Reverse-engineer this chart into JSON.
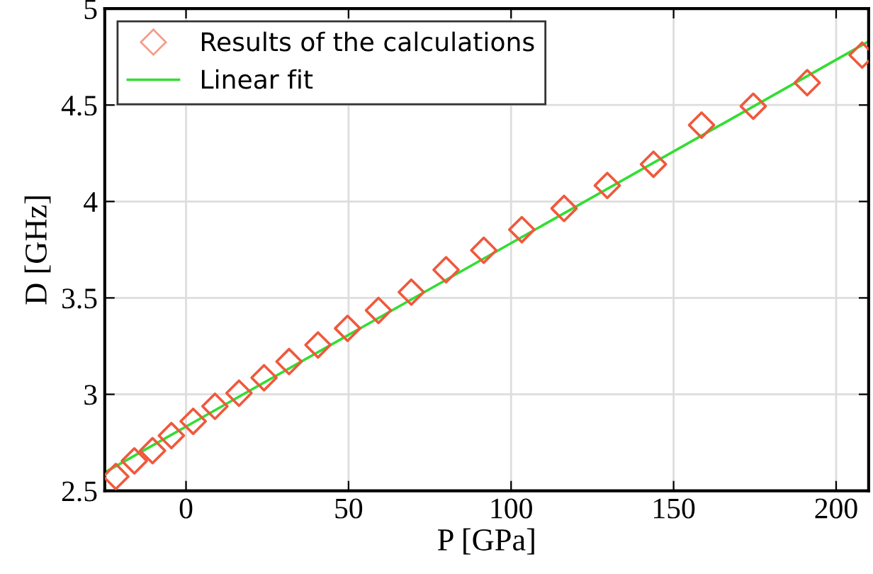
{
  "chart_data": {
    "type": "scatter",
    "xlabel": "P [GPa]",
    "ylabel": "D [GHz]",
    "xlim": [
      -25,
      210
    ],
    "ylim": [
      2.5,
      5
    ],
    "xticks": [
      0,
      50,
      100,
      150,
      200
    ],
    "yticks": [
      2.5,
      3,
      3.5,
      4,
      4.5,
      5
    ],
    "grid": true,
    "legend": "top left",
    "series": [
      {
        "name": "Results of the calculations",
        "marker": "diamond",
        "color": "#f0583c",
        "x": [
          -21.6,
          -15.9,
          -10.3,
          -4.5,
          2.2,
          8.9,
          16.3,
          24.0,
          31.7,
          40.6,
          49.7,
          59.2,
          69.3,
          80.0,
          91.6,
          103.3,
          116.3,
          129.6,
          143.8,
          158.6,
          174.5,
          191.1,
          208.0
        ],
        "values": [
          2.574,
          2.655,
          2.708,
          2.786,
          2.86,
          2.938,
          3.006,
          3.086,
          3.17,
          3.256,
          3.342,
          3.435,
          3.53,
          3.646,
          3.747,
          3.854,
          3.964,
          4.083,
          4.193,
          4.396,
          4.494,
          4.616,
          4.759
        ]
      },
      {
        "name": "Linear fit",
        "type": "line",
        "color": "#33dd33",
        "x": [
          -25,
          210
        ],
        "values": [
          2.595,
          4.83
        ]
      }
    ]
  }
}
